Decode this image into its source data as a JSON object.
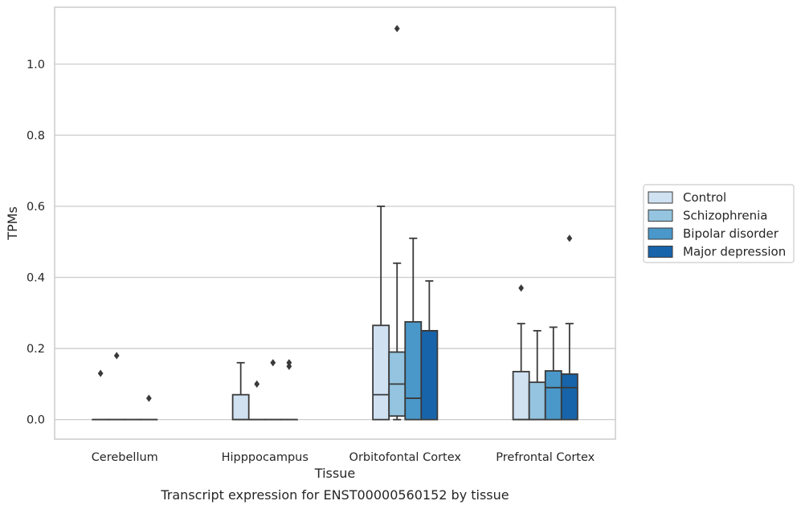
{
  "chart_data": {
    "type": "box",
    "title": "",
    "caption": "Transcript expression for ENST00000560152 by tissue",
    "xlabel": "Tissue",
    "ylabel": "TPMs",
    "ylim": [
      -0.055,
      1.16
    ],
    "yticks": [
      0.0,
      0.2,
      0.4,
      0.6,
      0.8,
      1.0
    ],
    "ytick_labels": [
      "0.0",
      "0.2",
      "0.4",
      "0.6",
      "0.8",
      "1.0"
    ],
    "grid": "horizontal",
    "legend_position": "right",
    "categories": [
      "Cerebellum",
      "Hipppocampus",
      "Orbitofontal Cortex",
      "Prefrontal Cortex"
    ],
    "series": [
      {
        "name": "Control",
        "color": "#d0e1f2",
        "boxes": [
          {
            "q1": 0.0,
            "median": 0.0,
            "q3": 0.0,
            "whisker_low": 0.0,
            "whisker_high": 0.0,
            "outliers": [
              0.13
            ]
          },
          {
            "q1": 0.0,
            "median": 0.0,
            "q3": 0.07,
            "whisker_low": 0.0,
            "whisker_high": 0.16,
            "outliers": []
          },
          {
            "q1": 0.0,
            "median": 0.07,
            "q3": 0.265,
            "whisker_low": 0.0,
            "whisker_high": 0.6,
            "outliers": []
          },
          {
            "q1": 0.0,
            "median": 0.0,
            "q3": 0.135,
            "whisker_low": 0.0,
            "whisker_high": 0.27,
            "outliers": [
              0.37
            ]
          }
        ]
      },
      {
        "name": "Schizophrenia",
        "color": "#94c4df",
        "boxes": [
          {
            "q1": 0.0,
            "median": 0.0,
            "q3": 0.0,
            "whisker_low": 0.0,
            "whisker_high": 0.0,
            "outliers": [
              0.18
            ]
          },
          {
            "q1": 0.0,
            "median": 0.0,
            "q3": 0.0,
            "whisker_low": 0.0,
            "whisker_high": 0.0,
            "outliers": [
              0.1
            ]
          },
          {
            "q1": 0.01,
            "median": 0.1,
            "q3": 0.19,
            "whisker_low": 0.0,
            "whisker_high": 0.44,
            "outliers": [
              1.1
            ]
          },
          {
            "q1": 0.0,
            "median": 0.0,
            "q3": 0.105,
            "whisker_low": 0.0,
            "whisker_high": 0.25,
            "outliers": []
          }
        ]
      },
      {
        "name": "Bipolar disorder",
        "color": "#4a98c9",
        "boxes": [
          {
            "q1": 0.0,
            "median": 0.0,
            "q3": 0.0,
            "whisker_low": 0.0,
            "whisker_high": 0.0,
            "outliers": []
          },
          {
            "q1": 0.0,
            "median": 0.0,
            "q3": 0.0,
            "whisker_low": 0.0,
            "whisker_high": 0.0,
            "outliers": [
              0.16
            ]
          },
          {
            "q1": 0.0,
            "median": 0.06,
            "q3": 0.275,
            "whisker_low": 0.0,
            "whisker_high": 0.51,
            "outliers": []
          },
          {
            "q1": 0.0,
            "median": 0.09,
            "q3": 0.137,
            "whisker_low": 0.0,
            "whisker_high": 0.26,
            "outliers": []
          }
        ]
      },
      {
        "name": "Major depression",
        "color": "#1764ab",
        "boxes": [
          {
            "q1": 0.0,
            "median": 0.0,
            "q3": 0.0,
            "whisker_low": 0.0,
            "whisker_high": 0.0,
            "outliers": [
              0.06
            ]
          },
          {
            "q1": 0.0,
            "median": 0.0,
            "q3": 0.0,
            "whisker_low": 0.0,
            "whisker_high": 0.0,
            "outliers": [
              0.15,
              0.16
            ]
          },
          {
            "q1": 0.0,
            "median": 0.25,
            "q3": 0.25,
            "whisker_low": 0.0,
            "whisker_high": 0.39,
            "outliers": []
          },
          {
            "q1": 0.0,
            "median": 0.09,
            "q3": 0.128,
            "whisker_low": 0.0,
            "whisker_high": 0.27,
            "outliers": [
              0.51
            ]
          }
        ]
      }
    ]
  }
}
